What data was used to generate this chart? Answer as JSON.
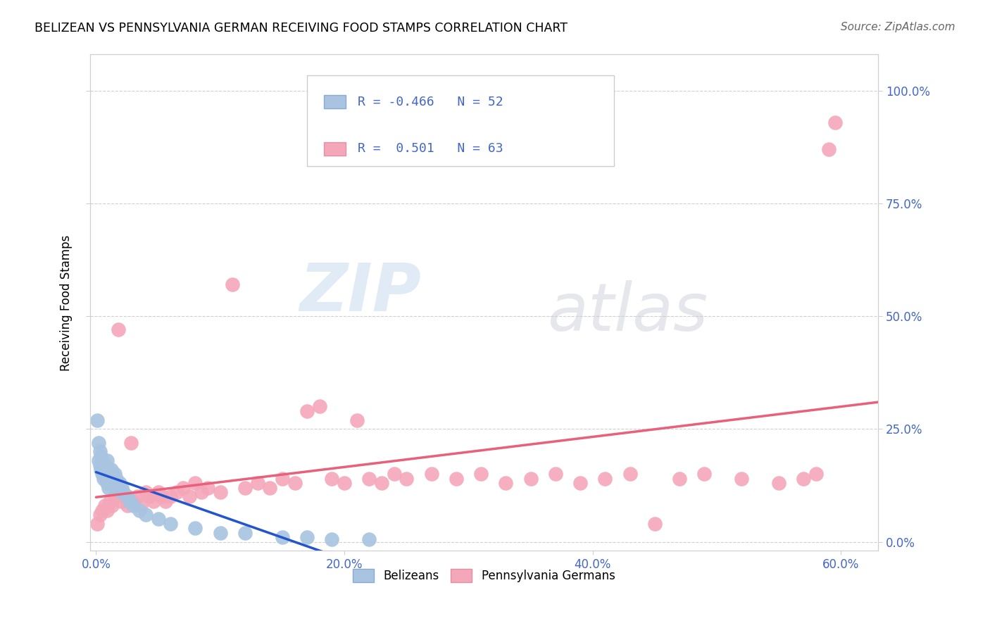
{
  "title": "BELIZEAN VS PENNSYLVANIA GERMAN RECEIVING FOOD STAMPS CORRELATION CHART",
  "source": "Source: ZipAtlas.com",
  "ylabel": "Receiving Food Stamps",
  "xlabel_tick_vals": [
    0.0,
    0.2,
    0.4,
    0.6
  ],
  "ylabel_tick_vals": [
    0.0,
    0.25,
    0.5,
    0.75,
    1.0
  ],
  "xlim": [
    -0.005,
    0.63
  ],
  "ylim": [
    -0.02,
    1.08
  ],
  "belizean_color": "#a8c4e0",
  "penn_german_color": "#f4a7b9",
  "belizean_line_color": "#2255cc",
  "penn_german_line_color": "#e8607a",
  "belizean_R": -0.466,
  "belizean_N": 52,
  "penn_german_R": 0.501,
  "penn_german_N": 63,
  "watermark_zip": "ZIP",
  "watermark_atlas": "atlas",
  "background_color": "#ffffff",
  "grid_color": "#d0d0d0",
  "tick_label_color": "#4466cc",
  "belizean_x": [
    0.001,
    0.002,
    0.002,
    0.003,
    0.003,
    0.004,
    0.004,
    0.005,
    0.005,
    0.005,
    0.006,
    0.006,
    0.007,
    0.007,
    0.008,
    0.008,
    0.009,
    0.009,
    0.01,
    0.01,
    0.01,
    0.011,
    0.011,
    0.012,
    0.012,
    0.013,
    0.013,
    0.014,
    0.015,
    0.015,
    0.016,
    0.016,
    0.017,
    0.018,
    0.019,
    0.02,
    0.021,
    0.022,
    0.025,
    0.027,
    0.03,
    0.035,
    0.04,
    0.05,
    0.06,
    0.08,
    0.1,
    0.12,
    0.15,
    0.17,
    0.19,
    0.22
  ],
  "belizean_y": [
    0.27,
    0.22,
    0.18,
    0.2,
    0.17,
    0.19,
    0.16,
    0.18,
    0.15,
    0.17,
    0.16,
    0.14,
    0.17,
    0.15,
    0.16,
    0.14,
    0.18,
    0.13,
    0.16,
    0.15,
    0.12,
    0.15,
    0.13,
    0.14,
    0.16,
    0.13,
    0.15,
    0.14,
    0.13,
    0.15,
    0.14,
    0.12,
    0.13,
    0.12,
    0.13,
    0.11,
    0.12,
    0.11,
    0.1,
    0.09,
    0.08,
    0.07,
    0.06,
    0.05,
    0.04,
    0.03,
    0.02,
    0.02,
    0.01,
    0.01,
    0.005,
    0.005
  ],
  "penn_german_x": [
    0.001,
    0.003,
    0.005,
    0.007,
    0.009,
    0.011,
    0.013,
    0.015,
    0.018,
    0.02,
    0.022,
    0.025,
    0.028,
    0.03,
    0.033,
    0.036,
    0.04,
    0.043,
    0.046,
    0.05,
    0.053,
    0.056,
    0.06,
    0.065,
    0.07,
    0.075,
    0.08,
    0.085,
    0.09,
    0.1,
    0.11,
    0.12,
    0.13,
    0.14,
    0.15,
    0.16,
    0.17,
    0.18,
    0.19,
    0.2,
    0.21,
    0.22,
    0.23,
    0.24,
    0.25,
    0.27,
    0.29,
    0.31,
    0.33,
    0.35,
    0.37,
    0.39,
    0.41,
    0.43,
    0.45,
    0.47,
    0.49,
    0.52,
    0.55,
    0.57,
    0.58,
    0.59,
    0.595
  ],
  "penn_german_y": [
    0.04,
    0.06,
    0.07,
    0.08,
    0.07,
    0.09,
    0.08,
    0.1,
    0.47,
    0.09,
    0.1,
    0.08,
    0.22,
    0.09,
    0.1,
    0.08,
    0.11,
    0.1,
    0.09,
    0.11,
    0.1,
    0.09,
    0.1,
    0.11,
    0.12,
    0.1,
    0.13,
    0.11,
    0.12,
    0.11,
    0.57,
    0.12,
    0.13,
    0.12,
    0.14,
    0.13,
    0.29,
    0.3,
    0.14,
    0.13,
    0.27,
    0.14,
    0.13,
    0.15,
    0.14,
    0.15,
    0.14,
    0.15,
    0.13,
    0.14,
    0.15,
    0.13,
    0.14,
    0.15,
    0.04,
    0.14,
    0.15,
    0.14,
    0.13,
    0.14,
    0.15,
    0.87,
    0.93
  ]
}
